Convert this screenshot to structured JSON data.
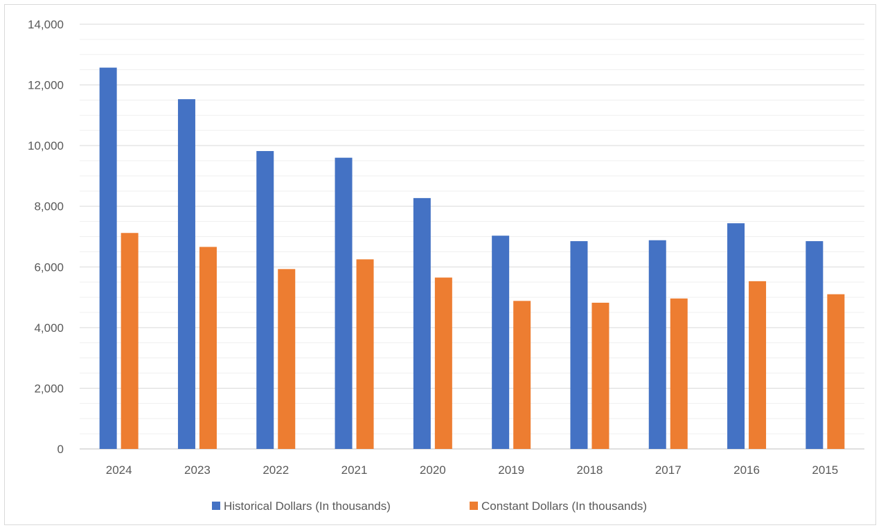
{
  "chart_data": {
    "type": "bar",
    "title": "",
    "xlabel": "",
    "ylabel": "",
    "categories": [
      "2024",
      "2023",
      "2022",
      "2021",
      "2020",
      "2019",
      "2018",
      "2017",
      "2016",
      "2015"
    ],
    "series": [
      {
        "name": "Historical Dollars (In thousands)",
        "color": "#4472c4",
        "values": [
          12570,
          11530,
          9820,
          9600,
          8270,
          7030,
          6850,
          6880,
          7440,
          6850
        ]
      },
      {
        "name": "Constant Dollars (In thousands)",
        "color": "#ed7d31",
        "values": [
          7120,
          6660,
          5930,
          6250,
          5650,
          4880,
          4820,
          4960,
          5530,
          5100
        ]
      }
    ],
    "ylim": [
      0,
      14000
    ],
    "ytick_labels": [
      "0",
      "2,000",
      "4,000",
      "6,000",
      "8,000",
      "10,000",
      "12,000",
      "14,000"
    ],
    "grid": true,
    "minor_grid": true,
    "legend_position": "bottom"
  }
}
